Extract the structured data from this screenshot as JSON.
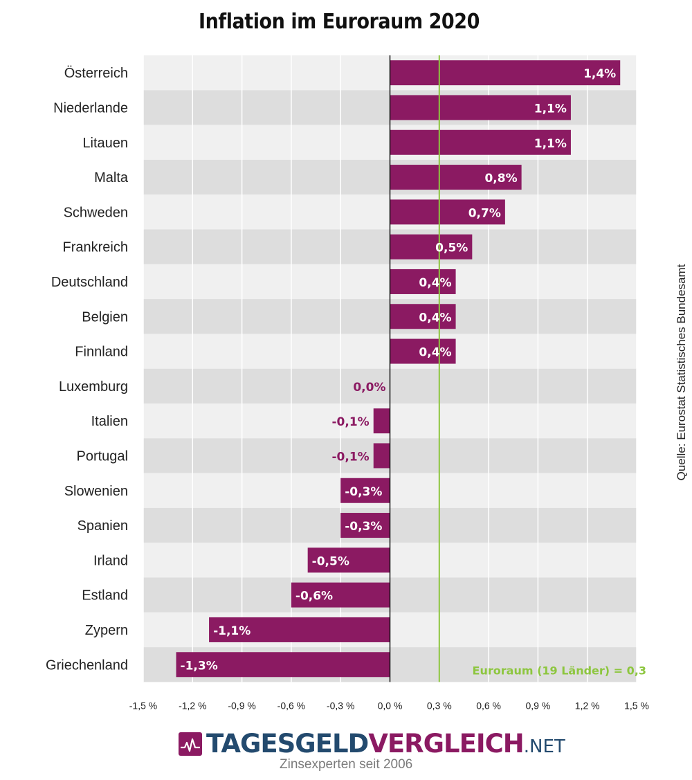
{
  "chart_data": {
    "type": "bar",
    "orientation": "horizontal",
    "title": "Inflation im Euroraum 2020",
    "categories": [
      "Österreich",
      "Niederlande",
      "Litauen",
      "Malta",
      "Schweden",
      "Frankreich",
      "Deutschland",
      "Belgien",
      "Finnland",
      "Luxemburg",
      "Italien",
      "Portugal",
      "Slowenien",
      "Spanien",
      "Irland",
      "Estland",
      "Zypern",
      "Griechenland"
    ],
    "values": [
      1.4,
      1.1,
      1.1,
      0.8,
      0.7,
      0.5,
      0.4,
      0.4,
      0.4,
      0.0,
      -0.1,
      -0.1,
      -0.3,
      -0.3,
      -0.5,
      -0.6,
      -1.1,
      -1.3
    ],
    "value_labels": [
      "1,4%",
      "1,1%",
      "1,1%",
      "0,8%",
      "0,7%",
      "0,5%",
      "0,4%",
      "0,4%",
      "0,4%",
      "0,0%",
      "-0,1%",
      "-0,1%",
      "-0,3%",
      "-0,3%",
      "-0,5%",
      "-0,6%",
      "-1,1%",
      "-1,3%"
    ],
    "x_ticks": [
      -1.5,
      -1.2,
      -0.9,
      -0.6,
      -0.3,
      0.0,
      0.3,
      0.6,
      0.9,
      1.2,
      1.5
    ],
    "x_tick_labels": [
      "-1,5 %",
      "-1,2 %",
      "-0,9 %",
      "-0,6 %",
      "-0,3 %",
      "0,0 %",
      "0,3 %",
      "0,6 %",
      "0,9 %",
      "1,2 %",
      "1,5 %"
    ],
    "xlim": [
      -1.5,
      1.5
    ],
    "xlabel": "",
    "ylabel": "",
    "grid": true,
    "reference_line": {
      "value": 0.3,
      "label": "Euroraum (19 Länder) = 0,3"
    },
    "colors": {
      "bar": "#8b1a62",
      "reference": "#8dc63f",
      "band_light": "#f0f0f0",
      "band_dark": "#dddddd",
      "grid": "#ffffff",
      "zero_axis": "#111111",
      "label_inside": "#ffffff",
      "label_outside": "#8b1a62"
    }
  },
  "source": "Quelle: Eurostat Statistisches Bundesamt",
  "logo": {
    "part1": "TAGESGELD",
    "part2": "VERGLEICH",
    "tld": ".NET",
    "tagline": "Zinsexperten seit 2006",
    "icon": "chart-pulse-icon"
  }
}
